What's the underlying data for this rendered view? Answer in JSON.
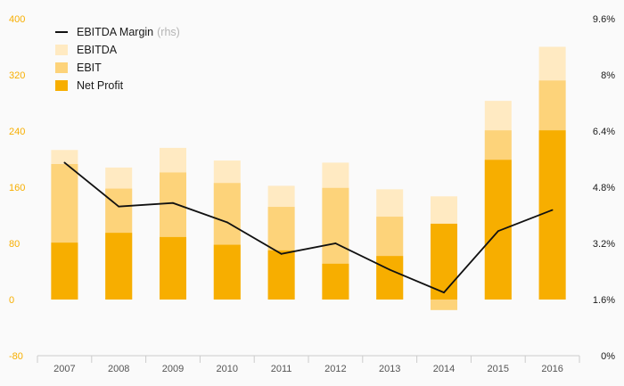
{
  "chart_data": {
    "type": "bar",
    "categories": [
      "2007",
      "2008",
      "2009",
      "2010",
      "2011",
      "2012",
      "2013",
      "2014",
      "2015",
      "2016"
    ],
    "series": [
      {
        "name": "Net Profit",
        "values": [
          81,
          95,
          89,
          78,
          70,
          51,
          62,
          108,
          199,
          241
        ],
        "color": "#f7ae00"
      },
      {
        "name": "EBIT",
        "values": [
          193,
          158,
          181,
          166,
          132,
          159,
          118,
          -15,
          241,
          312
        ],
        "color": "#fdd37a"
      },
      {
        "name": "EBITDA",
        "values": [
          213,
          188,
          216,
          198,
          162,
          195,
          157,
          147,
          283,
          360
        ],
        "color": "#ffeac2"
      },
      {
        "name": "EBITDA Margin",
        "axis": "rhs",
        "type": "line",
        "values": [
          5.5,
          4.25,
          4.35,
          3.8,
          2.9,
          3.2,
          2.45,
          1.8,
          3.55,
          4.15
        ],
        "color": "#111111"
      }
    ],
    "legend": {
      "items": [
        {
          "label": "EBITDA Margin",
          "note": "(rhs)",
          "type": "line",
          "color": "#111111"
        },
        {
          "label": "EBITDA",
          "type": "box",
          "color": "#ffeac2"
        },
        {
          "label": "EBIT",
          "type": "box",
          "color": "#fdd37a"
        },
        {
          "label": "Net Profit",
          "type": "box",
          "color": "#f7ae00"
        }
      ],
      "placement": "top-left"
    },
    "ylim": [
      -80,
      400
    ],
    "yticks": [
      "-80",
      "0",
      "80",
      "160",
      "240",
      "320",
      "400"
    ],
    "y2lim": [
      0,
      9.6
    ],
    "y2ticks": [
      "0%",
      "1.6%",
      "3.2%",
      "4.8%",
      "6.4%",
      "8%",
      "9.6%"
    ],
    "grid": false,
    "colors": {
      "left_axis": "#f7ae00",
      "right_axis": "#1a1a1a",
      "x_axis": "#555555",
      "axis_line": "#cccccc"
    }
  }
}
